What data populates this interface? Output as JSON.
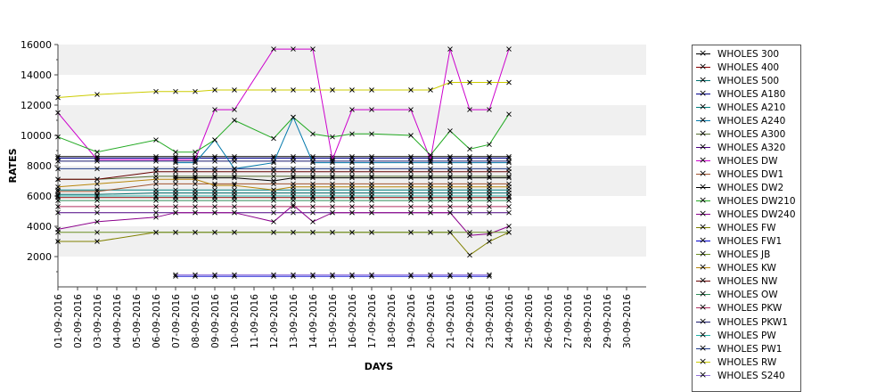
{
  "chart_data": {
    "type": "line",
    "xlabel": "DAYS",
    "ylabel": "RATES",
    "ylim": [
      0,
      16000
    ],
    "yticks": [
      2000,
      4000,
      6000,
      8000,
      10000,
      12000,
      14000,
      16000
    ],
    "grid": "alternating horizontal bands",
    "legend_position": "right",
    "categories": [
      "01-09-2016",
      "02-09-2016",
      "03-09-2016",
      "04-09-2016",
      "05-09-2016",
      "06-09-2016",
      "07-09-2016",
      "08-09-2016",
      "09-09-2016",
      "10-09-2016",
      "11-09-2016",
      "12-09-2016",
      "13-09-2016",
      "14-09-2016",
      "15-09-2016",
      "16-09-2016",
      "17-09-2016",
      "18-09-2016",
      "19-09-2016",
      "20-09-2016",
      "21-09-2016",
      "22-09-2016",
      "23-09-2016",
      "24-09-2016",
      "25-09-2016",
      "26-09-2016",
      "27-09-2016",
      "28-09-2016",
      "29-09-2016",
      "30-09-2016"
    ],
    "series": [
      {
        "name": "WHOLES 300",
        "color": "#000000",
        "values": [
          8600,
          null,
          8600,
          null,
          null,
          8600,
          8600,
          8600,
          8600,
          8600,
          null,
          8600,
          8600,
          8600,
          8600,
          8600,
          8600,
          null,
          8600,
          8600,
          8600,
          8600,
          8600,
          8600,
          null,
          null,
          null,
          null,
          null,
          null
        ]
      },
      {
        "name": "WHOLES 400",
        "color": "#8b0000",
        "values": [
          5900,
          null,
          5900,
          null,
          null,
          5900,
          5900,
          5900,
          5900,
          5900,
          null,
          5900,
          5900,
          5900,
          5900,
          5900,
          5900,
          null,
          5900,
          5900,
          5900,
          5900,
          5900,
          5900,
          null,
          null,
          null,
          null,
          null,
          null
        ]
      },
      {
        "name": "WHOLES 500",
        "color": "#007070",
        "values": [
          6100,
          null,
          6100,
          null,
          null,
          6200,
          6200,
          6200,
          6200,
          6200,
          null,
          6200,
          6200,
          6200,
          6200,
          6200,
          6200,
          null,
          6200,
          6200,
          6200,
          6200,
          6200,
          6200,
          null,
          null,
          null,
          null,
          null,
          null
        ]
      },
      {
        "name": "WHOLES A180",
        "color": "#00008b",
        "values": [
          8500,
          null,
          8500,
          null,
          null,
          8500,
          8500,
          8500,
          8500,
          8500,
          null,
          8500,
          8500,
          8500,
          8500,
          8500,
          8500,
          null,
          8500,
          8500,
          8500,
          8500,
          8500,
          8500,
          null,
          null,
          null,
          null,
          null,
          null
        ]
      },
      {
        "name": "WHOLES A210",
        "color": "#008080",
        "values": [
          6400,
          null,
          6400,
          null,
          null,
          6400,
          6400,
          6400,
          6400,
          6400,
          null,
          6400,
          6400,
          6400,
          6400,
          6400,
          6400,
          null,
          6400,
          6400,
          6400,
          6400,
          6400,
          6400,
          null,
          null,
          null,
          null,
          null,
          null
        ]
      },
      {
        "name": "WHOLES A240",
        "color": "#0077aa",
        "values": [
          null,
          null,
          null,
          null,
          null,
          null,
          8200,
          8200,
          9700,
          7800,
          null,
          8200,
          11200,
          8200,
          8200,
          8200,
          8200,
          null,
          8200,
          8200,
          8200,
          8200,
          8200,
          8200,
          null,
          null,
          null,
          null,
          null,
          null
        ]
      },
      {
        "name": "WHOLES A300",
        "color": "#556b2f",
        "values": [
          7100,
          null,
          7100,
          null,
          null,
          7300,
          7300,
          7300,
          7300,
          7300,
          null,
          7300,
          7300,
          7300,
          7300,
          7300,
          7300,
          null,
          7300,
          7300,
          7300,
          7300,
          7300,
          7300,
          null,
          null,
          null,
          null,
          null,
          null
        ]
      },
      {
        "name": "WHOLES A320",
        "color": "#4b0082",
        "values": [
          4900,
          null,
          4900,
          null,
          null,
          4900,
          4900,
          4900,
          4900,
          4900,
          null,
          4900,
          4900,
          4900,
          4900,
          4900,
          4900,
          null,
          4900,
          4900,
          4900,
          4900,
          4900,
          4900,
          null,
          null,
          null,
          null,
          null,
          null
        ]
      },
      {
        "name": "WHOLES DW",
        "color": "#cc00cc",
        "values": [
          11500,
          null,
          8400,
          null,
          null,
          8400,
          8400,
          8400,
          11700,
          11700,
          null,
          15700,
          15700,
          15700,
          8400,
          11700,
          11700,
          null,
          11700,
          8400,
          15700,
          11700,
          11700,
          15700,
          null,
          null,
          null,
          null,
          null,
          null
        ]
      },
      {
        "name": "WHOLES DW1",
        "color": "#a0522d",
        "values": [
          6300,
          null,
          6300,
          null,
          null,
          6800,
          6800,
          6800,
          6800,
          6800,
          null,
          6800,
          6800,
          6800,
          6800,
          6800,
          6800,
          null,
          6800,
          6800,
          6800,
          6800,
          6800,
          6800,
          null,
          null,
          null,
          null,
          null,
          null
        ]
      },
      {
        "name": "WHOLES DW2",
        "color": "#000000",
        "values": [
          null,
          null,
          null,
          null,
          null,
          null,
          7200,
          7200,
          7200,
          7200,
          null,
          7000,
          7200,
          7200,
          7200,
          7200,
          7200,
          null,
          7200,
          7200,
          7200,
          7200,
          7200,
          7200,
          null,
          null,
          null,
          null,
          null,
          null
        ]
      },
      {
        "name": "WHOLES DW210",
        "color": "#22aa22",
        "values": [
          9900,
          null,
          8900,
          null,
          null,
          9700,
          8900,
          8900,
          9700,
          11000,
          null,
          9800,
          11200,
          10100,
          9900,
          10100,
          10100,
          null,
          10000,
          8700,
          10300,
          9100,
          9400,
          11400,
          null,
          null,
          null,
          null,
          null,
          null
        ]
      },
      {
        "name": "WHOLES DW240",
        "color": "#8b008b",
        "values": [
          3800,
          null,
          4300,
          null,
          null,
          4600,
          4900,
          4900,
          4900,
          4900,
          null,
          4300,
          5400,
          4300,
          4900,
          4900,
          4900,
          null,
          4900,
          4900,
          4900,
          3400,
          3500,
          4000,
          null,
          null,
          null,
          null,
          null,
          null
        ]
      },
      {
        "name": "WHOLES FW",
        "color": "#808000",
        "values": [
          3000,
          null,
          3000,
          null,
          null,
          3600,
          3600,
          3600,
          3600,
          3600,
          null,
          3600,
          3600,
          3600,
          3600,
          3600,
          3600,
          null,
          3600,
          3600,
          3600,
          2100,
          3000,
          3600,
          null,
          null,
          null,
          null,
          null,
          null
        ]
      },
      {
        "name": "WHOLES FW1",
        "color": "#0000cc",
        "values": [
          null,
          null,
          null,
          null,
          null,
          null,
          700,
          700,
          700,
          700,
          null,
          700,
          700,
          700,
          700,
          700,
          700,
          null,
          700,
          700,
          700,
          700,
          700,
          null,
          null,
          null,
          null,
          null,
          null,
          null
        ]
      },
      {
        "name": "WHOLES JB",
        "color": "#6b8e23",
        "values": [
          3600,
          null,
          3600,
          null,
          null,
          3600,
          3600,
          3600,
          3600,
          3600,
          null,
          3600,
          3600,
          3600,
          3600,
          3600,
          3600,
          null,
          3600,
          3600,
          3600,
          3600,
          3600,
          3600,
          null,
          null,
          null,
          null,
          null,
          null
        ]
      },
      {
        "name": "WHOLES KW",
        "color": "#b8860b",
        "values": [
          6600,
          null,
          6800,
          null,
          null,
          7100,
          7100,
          7100,
          6700,
          6700,
          null,
          6400,
          6600,
          6600,
          6600,
          6600,
          6600,
          null,
          6600,
          6600,
          6600,
          6600,
          6600,
          6600,
          null,
          null,
          null,
          null,
          null,
          null
        ]
      },
      {
        "name": "WHOLES NW",
        "color": "#660000",
        "values": [
          7100,
          null,
          7100,
          null,
          null,
          7600,
          7600,
          7600,
          7600,
          7600,
          null,
          7600,
          7600,
          7600,
          7600,
          7600,
          7600,
          null,
          7600,
          7600,
          7600,
          7600,
          7600,
          7600,
          null,
          null,
          null,
          null,
          null,
          null
        ]
      },
      {
        "name": "WHOLES OW",
        "color": "#2e8b57",
        "values": [
          5700,
          null,
          5700,
          null,
          null,
          5700,
          5700,
          5700,
          5700,
          5700,
          null,
          5700,
          5700,
          5700,
          5700,
          5700,
          5700,
          null,
          5700,
          5700,
          5700,
          5700,
          5700,
          5700,
          null,
          null,
          null,
          null,
          null,
          null
        ]
      },
      {
        "name": "WHOLES PKW",
        "color": "#b03060",
        "values": [
          5300,
          null,
          5300,
          null,
          null,
          5300,
          5300,
          5300,
          5300,
          5300,
          null,
          5300,
          5300,
          5300,
          5300,
          5300,
          5300,
          null,
          5300,
          5300,
          5300,
          5300,
          5300,
          5300,
          null,
          null,
          null,
          null,
          null,
          null
        ]
      },
      {
        "name": "WHOLES PKW1",
        "color": "#1a1a6e",
        "values": [
          8300,
          null,
          8300,
          null,
          null,
          8300,
          8300,
          8300,
          8300,
          8300,
          null,
          8300,
          8300,
          8300,
          8300,
          8300,
          8300,
          null,
          8300,
          8300,
          8300,
          8300,
          8300,
          8300,
          null,
          null,
          null,
          null,
          null,
          null
        ]
      },
      {
        "name": "WHOLES PW",
        "color": "#20b2aa",
        "values": [
          6000,
          null,
          6000,
          null,
          null,
          6000,
          6000,
          6000,
          6000,
          6000,
          null,
          6000,
          6000,
          6000,
          6000,
          6000,
          6000,
          null,
          6000,
          6000,
          6000,
          6000,
          6000,
          6000,
          null,
          null,
          null,
          null,
          null,
          null
        ]
      },
      {
        "name": "WHOLES PW1",
        "color": "#1e3a8a",
        "values": [
          7800,
          null,
          7800,
          null,
          null,
          7800,
          7800,
          7800,
          7800,
          7800,
          null,
          7800,
          7800,
          7800,
          7800,
          7800,
          7800,
          null,
          7800,
          7800,
          7800,
          7800,
          7800,
          7800,
          null,
          null,
          null,
          null,
          null,
          null
        ]
      },
      {
        "name": "WHOLES RW",
        "color": "#cccc00",
        "values": [
          12500,
          null,
          12700,
          null,
          null,
          12900,
          12900,
          12900,
          13000,
          13000,
          null,
          13000,
          13000,
          13000,
          13000,
          13000,
          13000,
          null,
          13000,
          13000,
          13500,
          13500,
          13500,
          13500,
          null,
          null,
          null,
          null,
          null,
          null
        ]
      },
      {
        "name": "WHOLES S240",
        "color": "#9370db",
        "values": [
          null,
          null,
          null,
          null,
          null,
          null,
          800,
          800,
          800,
          800,
          null,
          800,
          800,
          800,
          800,
          800,
          800,
          null,
          800,
          800,
          800,
          800,
          800,
          null,
          null,
          null,
          null,
          null,
          null,
          null
        ]
      }
    ]
  }
}
